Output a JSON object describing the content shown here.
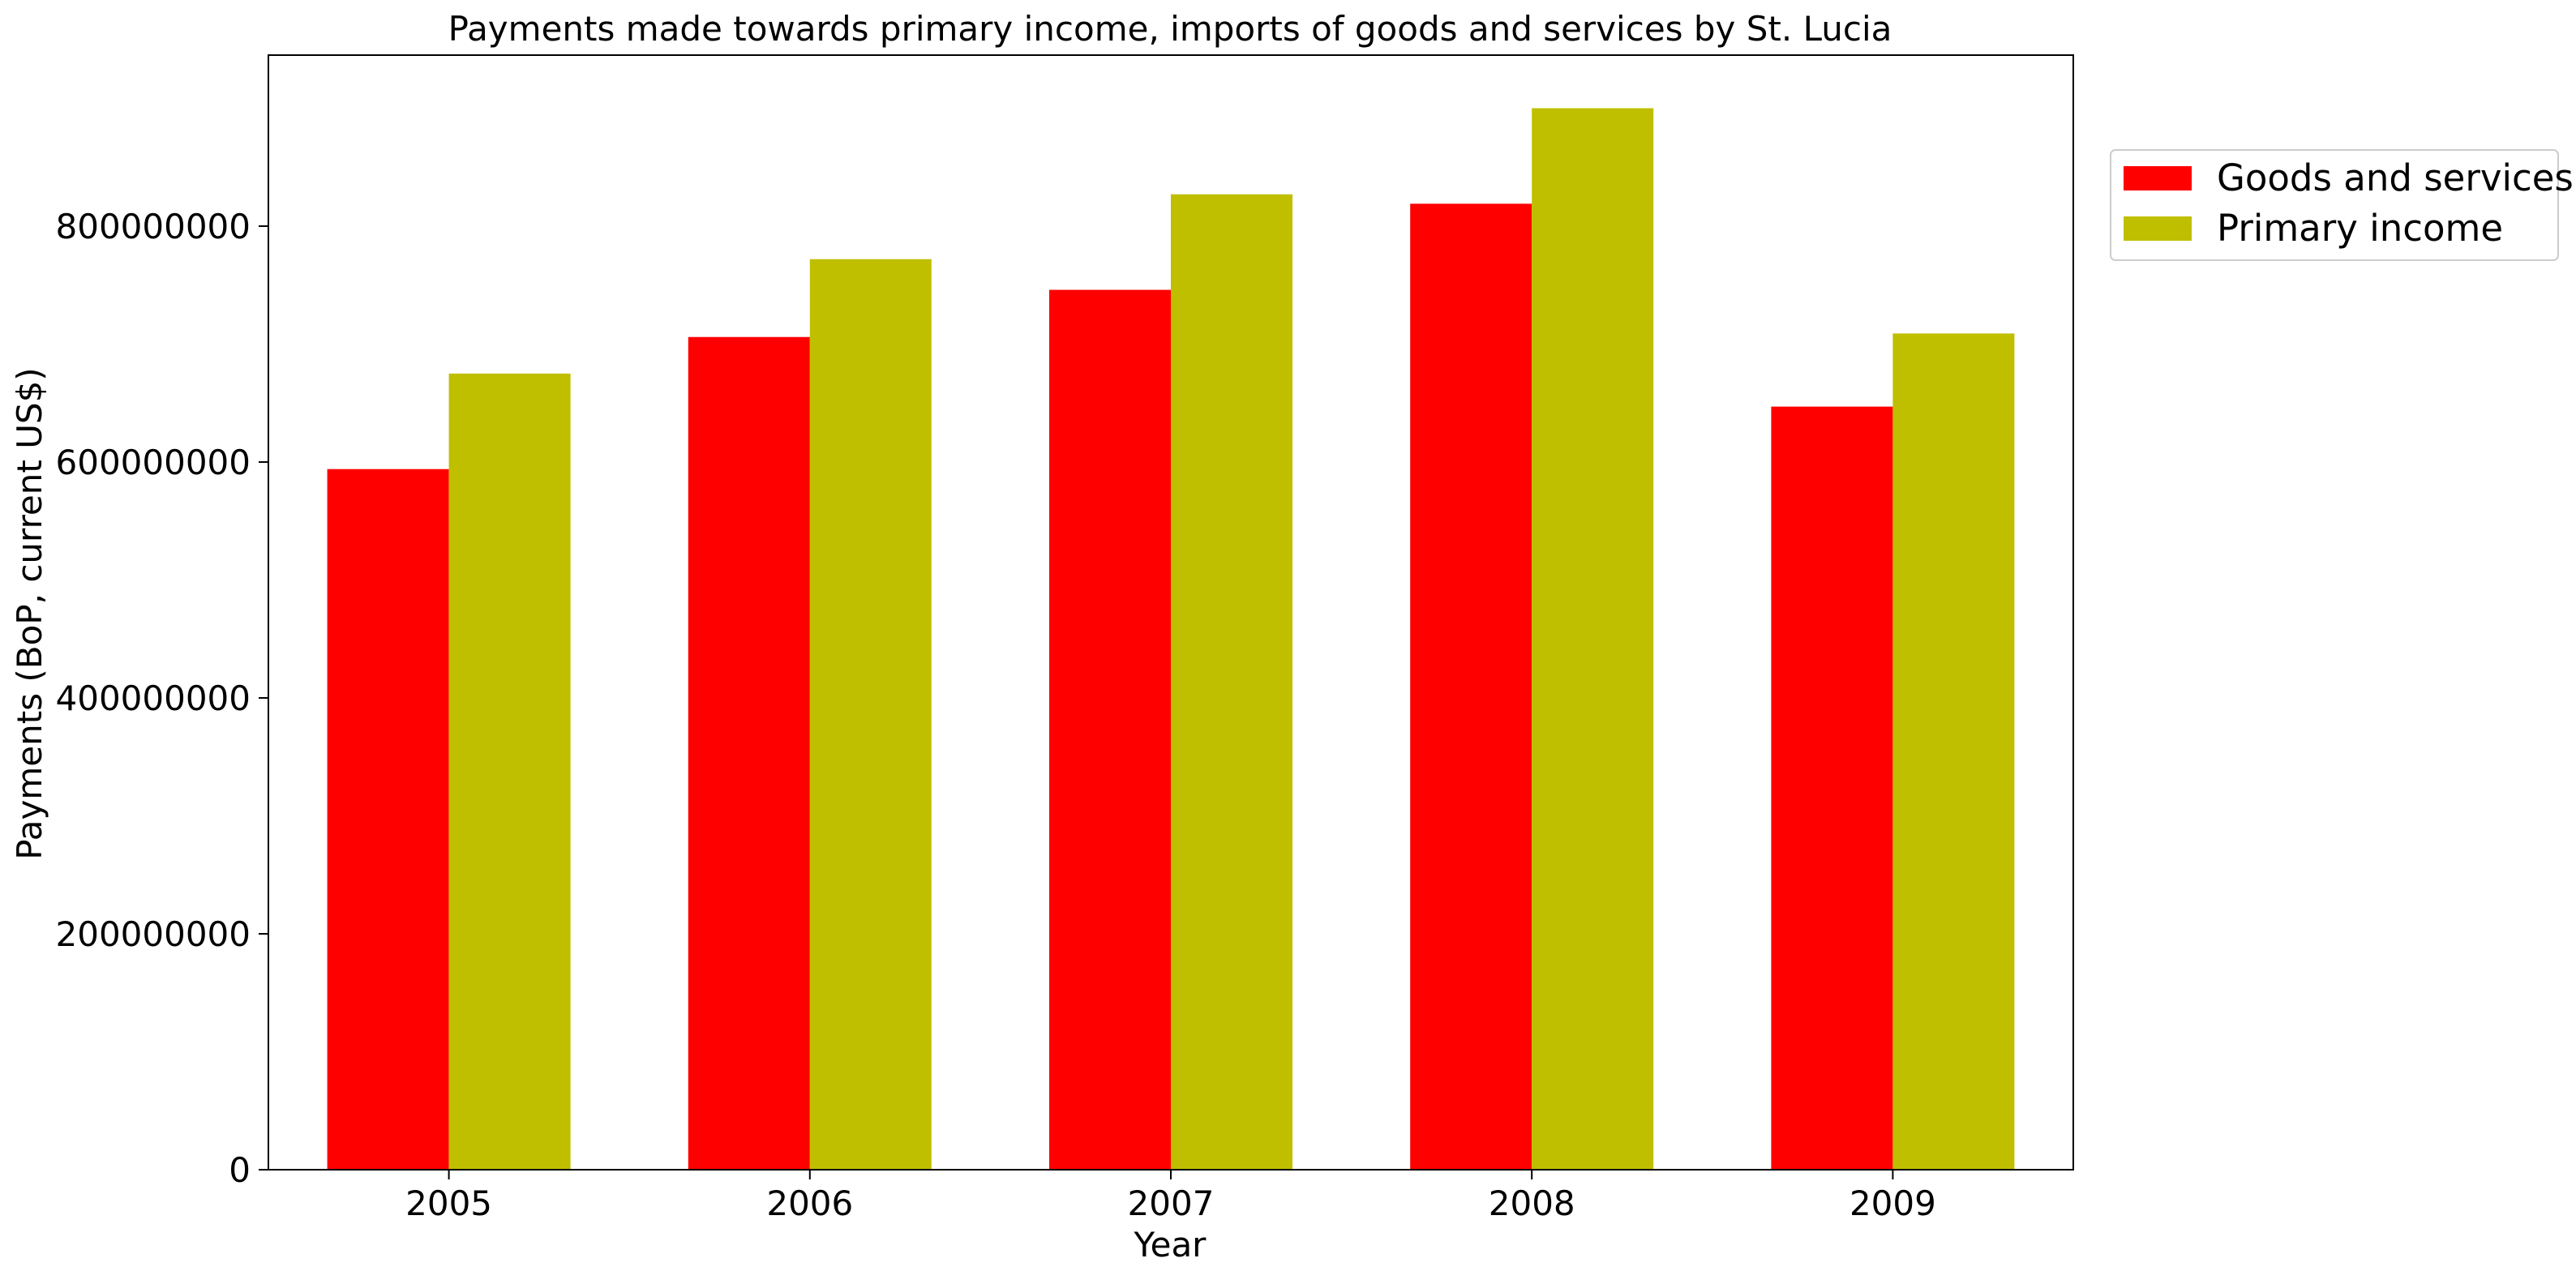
{
  "chart_data": {
    "type": "bar",
    "title": "Payments made towards primary income, imports of goods and services by St. Lucia",
    "xlabel": "Year",
    "ylabel": "Payments (BoP, current US$)",
    "categories": [
      "2005",
      "2006",
      "2007",
      "2008",
      "2009"
    ],
    "series": [
      {
        "name": "Goods and services",
        "color": "#ff0000",
        "values": [
          594000000,
          706000000,
          746000000,
          819000000,
          647000000
        ]
      },
      {
        "name": "Primary income",
        "color": "#bfbf00",
        "values": [
          675000000,
          772000000,
          827000000,
          900000000,
          709000000
        ]
      }
    ],
    "ylim": [
      0,
      945000000
    ],
    "yticks": [
      0,
      200000000,
      400000000,
      600000000,
      800000000
    ],
    "ytick_labels": [
      "0",
      "200000000",
      "400000000",
      "600000000",
      "800000000"
    ],
    "grid": false,
    "legend_position": "outside-right-top"
  }
}
